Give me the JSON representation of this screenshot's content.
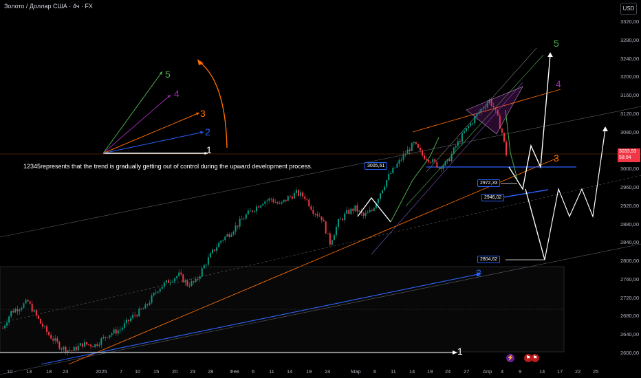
{
  "header": {
    "symbol_title": "Золото / Доллар США · 4ч · FX",
    "currency": "USD"
  },
  "annotation": {
    "text": "12345represents that the trend is gradually getting out of control during the upward development process."
  },
  "price_tags": {
    "t1": "3005,61",
    "t2": "2972,33",
    "t3": "2946,02",
    "t4": "2804,62"
  },
  "current_price": {
    "value": "3033,93",
    "countdown": "58:04"
  },
  "wave_labels": {
    "legend": [
      "1",
      "2",
      "3",
      "4",
      "5"
    ],
    "chart": [
      "1",
      "2",
      "3",
      "4",
      "5"
    ]
  },
  "colors": {
    "up_candle": "#089981",
    "down_candle": "#f23645",
    "wave1": "#ffffff",
    "wave2": "#2962ff",
    "wave3": "#ff6d00",
    "wave4": "#9c27b0",
    "wave5": "#4caf50",
    "hline": "#2962ff",
    "current_price": "#f23645"
  },
  "icons": [
    "flash-icon",
    "flag-icon"
  ],
  "chart_data": {
    "type": "candlestick",
    "title": "Золото / Доллар США · 4ч · FX",
    "y_axis_ticks": [
      "3320,00",
      "3280,00",
      "3240,00",
      "3200,00",
      "3160,00",
      "3120,00",
      "3080,00",
      "3040,00",
      "3000,00",
      "2960,00",
      "2920,00",
      "2880,00",
      "2840,00",
      "2800,00",
      "2760,00",
      "2720,00",
      "2680,00",
      "2640,00",
      "2600,00"
    ],
    "x_axis_ticks": [
      "10",
      "13",
      "18",
      "23",
      "2025",
      "7",
      "10",
      "15",
      "20",
      "23",
      "28",
      "Фев",
      "6",
      "11",
      "14",
      "19",
      "24",
      "Мар",
      "6",
      "11",
      "14",
      "19",
      "24",
      "27",
      "Апр",
      "4",
      "9",
      "14",
      "17",
      "22",
      "25"
    ],
    "ylim": [
      2590,
      3340
    ],
    "horizontal_levels": [
      3005.61,
      2972.33,
      2946.02,
      2804.62
    ],
    "last_price": 3033.93,
    "price_path": [
      [
        0,
        2655
      ],
      [
        4,
        2690
      ],
      [
        8,
        2700
      ],
      [
        12,
        2712
      ],
      [
        18,
        2665
      ],
      [
        22,
        2640
      ],
      [
        28,
        2612
      ],
      [
        33,
        2605
      ],
      [
        38,
        2620
      ],
      [
        44,
        2618
      ],
      [
        50,
        2640
      ],
      [
        56,
        2652
      ],
      [
        62,
        2680
      ],
      [
        68,
        2700
      ],
      [
        74,
        2740
      ],
      [
        80,
        2760
      ],
      [
        84,
        2770
      ],
      [
        88,
        2750
      ],
      [
        92,
        2755
      ],
      [
        96,
        2790
      ],
      [
        100,
        2820
      ],
      [
        104,
        2845
      ],
      [
        108,
        2860
      ],
      [
        112,
        2880
      ],
      [
        116,
        2900
      ],
      [
        120,
        2915
      ],
      [
        124,
        2930
      ],
      [
        128,
        2935
      ],
      [
        132,
        2922
      ],
      [
        136,
        2938
      ],
      [
        140,
        2948
      ],
      [
        144,
        2940
      ],
      [
        148,
        2910
      ],
      [
        152,
        2895
      ],
      [
        156,
        2840
      ],
      [
        160,
        2885
      ],
      [
        164,
        2905
      ],
      [
        168,
        2915
      ],
      [
        172,
        2898
      ],
      [
        176,
        2910
      ],
      [
        180,
        2950
      ],
      [
        184,
        2985
      ],
      [
        188,
        3010
      ],
      [
        192,
        3035
      ],
      [
        196,
        3055
      ],
      [
        200,
        3030
      ],
      [
        204,
        3020
      ],
      [
        208,
        3005
      ],
      [
        212,
        3015
      ],
      [
        216,
        3050
      ],
      [
        220,
        3080
      ],
      [
        224,
        3105
      ],
      [
        228,
        3130
      ],
      [
        232,
        3150
      ],
      [
        234,
        3135
      ],
      [
        236,
        3110
      ],
      [
        238,
        3080
      ],
      [
        240,
        3033
      ]
    ],
    "projected_path": [
      [
        240,
        3005
      ],
      [
        246,
        3040
      ],
      [
        252,
        3000
      ],
      [
        258,
        3005
      ],
      [
        264,
        2940
      ],
      [
        276,
        2805
      ],
      [
        288,
        3000
      ],
      [
        300,
        3245
      ]
    ]
  }
}
